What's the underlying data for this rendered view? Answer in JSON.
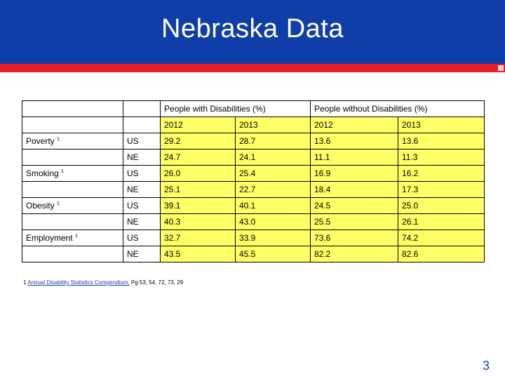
{
  "slide": {
    "title": "Nebraska Data",
    "page_number": "3",
    "colors": {
      "title_bar": "#0f3ea8",
      "stripe": "#e8202a",
      "data_cells": "#ffff66"
    }
  },
  "table": {
    "group_headers": [
      "People with Disabilities (%)",
      "People without Disabilities (%)"
    ],
    "years": [
      "2012",
      "2013",
      "2012",
      "2013"
    ],
    "rows": [
      {
        "category": "Poverty ",
        "sup": "1",
        "region": "US",
        "values": [
          "29.2",
          "28.7",
          "13.6",
          "13.6"
        ]
      },
      {
        "category": "",
        "sup": "",
        "region": "NE",
        "values": [
          "24.7",
          "24.1",
          "11.1",
          "11.3"
        ]
      },
      {
        "category": "Smoking ",
        "sup": "1",
        "region": "US",
        "values": [
          "26.0",
          "25.4",
          "16.9",
          "16.2"
        ]
      },
      {
        "category": "",
        "sup": "",
        "region": "NE",
        "values": [
          "25.1",
          "22.7",
          "18.4",
          "17.3"
        ]
      },
      {
        "category": "Obesity ",
        "sup": "1",
        "region": "US",
        "values": [
          "39.1",
          "40.1",
          "24.5",
          "25.0"
        ]
      },
      {
        "category": "",
        "sup": "",
        "region": "NE",
        "values": [
          "40.3",
          "43.0",
          "25.5",
          "26.1"
        ]
      },
      {
        "category": "Employment ",
        "sup": "1",
        "region": "US",
        "values": [
          "32.7",
          "33.9",
          "73.6",
          "74.2"
        ]
      },
      {
        "category": "",
        "sup": "",
        "region": "NE",
        "values": [
          "43.5",
          "45.5",
          "82.2",
          "82.6"
        ]
      }
    ]
  },
  "footnote": {
    "marker": "1",
    "link_text": "Annual Disability Statistics Compendium,",
    "rest": " Pg 53, 54, 72, 73, 29"
  }
}
